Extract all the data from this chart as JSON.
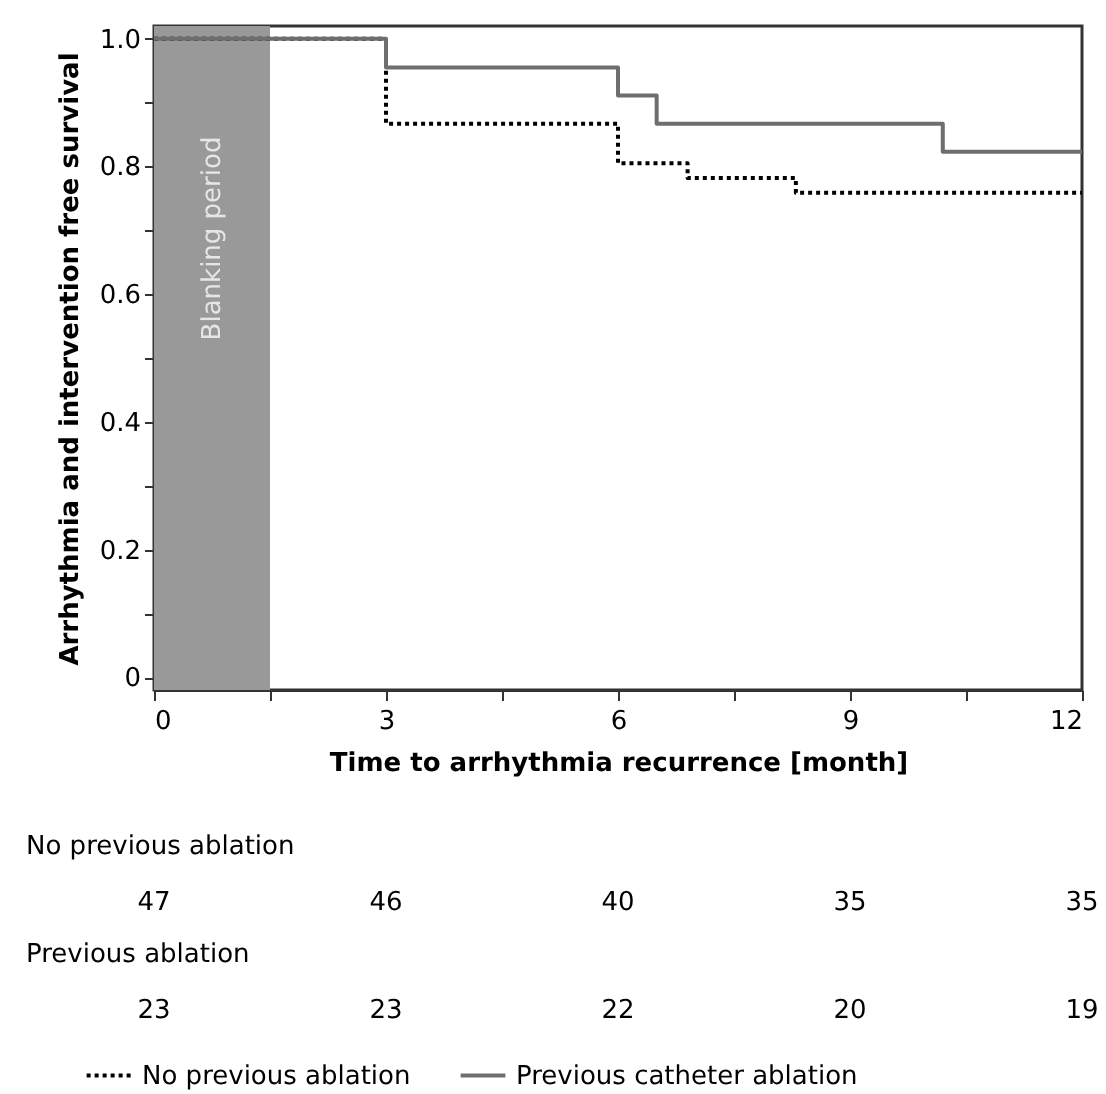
{
  "chart_data": {
    "type": "step",
    "xlabel": "Time to arrhythmia recurrence [month]",
    "ylabel": "Arrhythmia and intervention free survival",
    "series": [
      {
        "name": "No previous ablation",
        "color": "#000000",
        "line_style": "dotted",
        "x": [
          0,
          3,
          6,
          6.9,
          8.3,
          12
        ],
        "values": [
          1.0,
          0.867,
          0.805,
          0.782,
          0.759,
          0.759
        ]
      },
      {
        "name": "Previous catheter ablation",
        "color": "#6e6e6e",
        "line_style": "solid",
        "x": [
          0,
          3,
          6,
          6.5,
          10.2,
          12
        ],
        "values": [
          1.0,
          0.955,
          0.911,
          0.867,
          0.823,
          0.823
        ]
      }
    ],
    "xlim": [
      0,
      12
    ],
    "ylim": [
      -0.02,
      1.02
    ],
    "xticks": [
      0,
      {
        "value": 1.5,
        "label": null
      },
      3,
      {
        "value": 4.5,
        "label": null
      },
      6,
      {
        "value": 7.5,
        "label": null
      },
      9,
      {
        "value": 10.5,
        "label": null
      },
      12
    ],
    "yticks": [
      0,
      {
        "value": 0.1,
        "label": null
      },
      {
        "value": 0.2,
        "label": "0.2"
      },
      {
        "value": 0.3,
        "label": null
      },
      {
        "value": 0.4,
        "label": "0.4"
      },
      {
        "value": 0.5,
        "label": null
      },
      {
        "value": 0.6,
        "label": "0.6"
      },
      {
        "value": 0.7,
        "label": null
      },
      {
        "value": 0.8,
        "label": "0.8"
      },
      {
        "value": 0.9,
        "label": null
      },
      {
        "value": 1.0,
        "label": "1.0"
      }
    ],
    "bands": [
      {
        "axis": "x",
        "from": 0,
        "to": 1.5,
        "label": "Blanking period",
        "color": "#999999"
      }
    ],
    "annotations": [
      "No previous ablation",
      "47",
      "46",
      "40",
      "35",
      "35",
      "Previous ablation",
      "23",
      "23",
      "22",
      "20",
      "19"
    ],
    "legend": "bottom"
  }
}
